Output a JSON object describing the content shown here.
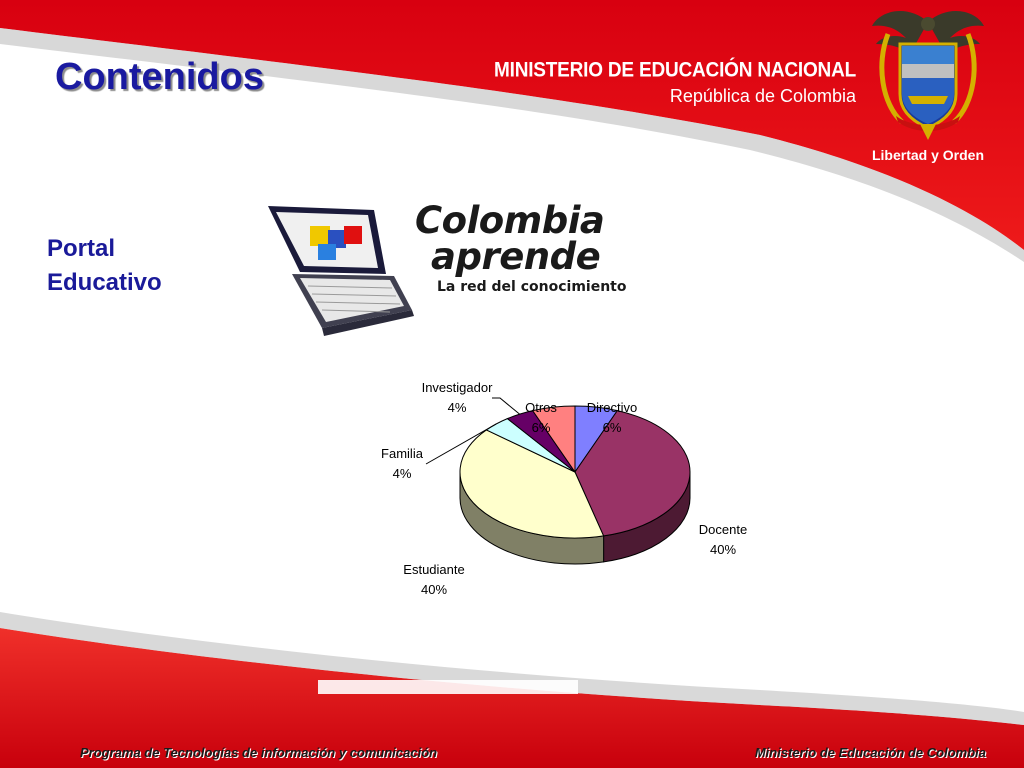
{
  "slide": {
    "title": "Contenidos",
    "section": [
      "Portal",
      "Educativo"
    ]
  },
  "header": {
    "ministry_line1": "MINISTERIO DE EDUCACIÓN NACIONAL",
    "ministry_line2": "República de Colombia",
    "motto": "Libertad y Orden"
  },
  "logo": {
    "word1": "Colombia",
    "word2": "aprende",
    "tagline": "La red del conocimiento"
  },
  "footer": {
    "left": "Programa de Tecnologías de información y comunicación",
    "right": "Ministerio de Educación  de Colombia"
  },
  "colors": {
    "header_red": "#e3000f",
    "title_blue": "#1a1aa0"
  },
  "chart_data": {
    "type": "pie",
    "title": "",
    "slices": [
      {
        "name": "Directivo",
        "value": 6,
        "label": "6%",
        "color": "#7f7fff"
      },
      {
        "name": "Docente",
        "value": 40,
        "label": "40%",
        "color": "#993366"
      },
      {
        "name": "Estudiante",
        "value": 40,
        "label": "40%",
        "color": "#ffffcc"
      },
      {
        "name": "Familia",
        "value": 4,
        "label": "4%",
        "color": "#ccffff"
      },
      {
        "name": "Investigador",
        "value": 4,
        "label": "4%",
        "color": "#660066"
      },
      {
        "name": "Otros",
        "value": 6,
        "label": "6%",
        "color": "#ff8080"
      }
    ]
  }
}
